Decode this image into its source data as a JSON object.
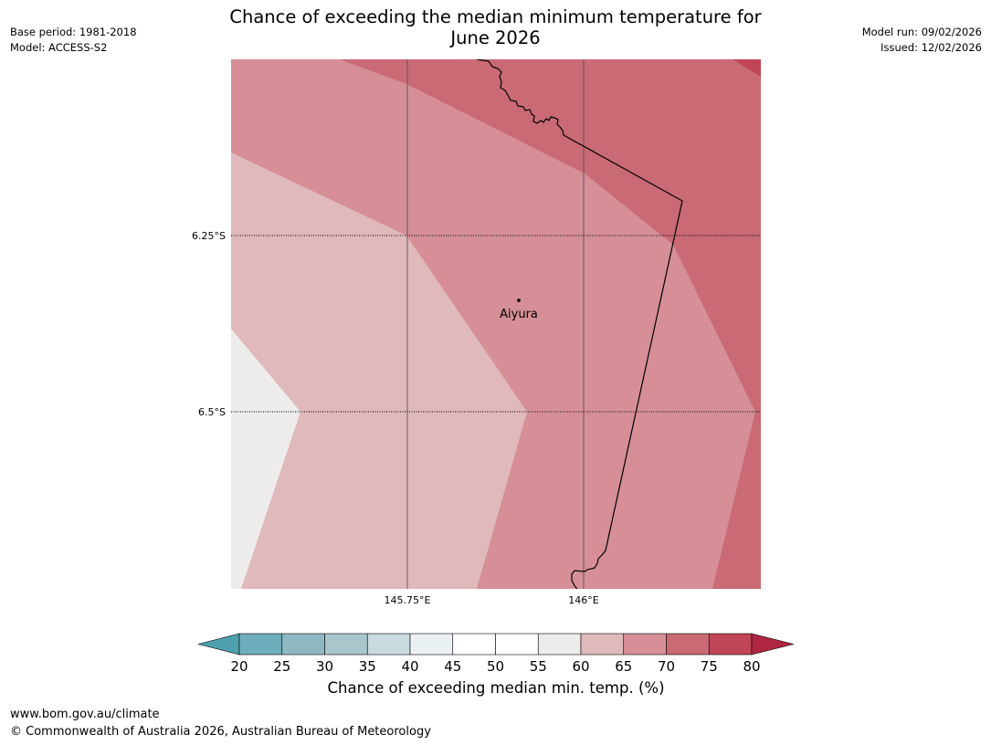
{
  "title": {
    "line1": "Chance of exceeding the median minimum temperature for",
    "line2": "June 2026"
  },
  "meta": {
    "base_period": "Base period: 1981-2018",
    "model": "Model: ACCESS-S2",
    "model_run": "Model run: 09/02/2026",
    "issued": "Issued: 12/02/2026"
  },
  "map": {
    "latitude_labels": [
      "6.25°S",
      "6.5°S"
    ],
    "longitude_labels": [
      "145.75°E",
      "146°E"
    ],
    "place_label": "Aiyura"
  },
  "colorbar": {
    "label": "Chance of exceeding median min. temp. (%)",
    "ticks": [
      "20",
      "25",
      "30",
      "35",
      "40",
      "45",
      "50",
      "55",
      "60",
      "65",
      "70",
      "75",
      "80"
    ],
    "colors": [
      "#4ea0ae",
      "#6eadbb",
      "#8db8c4",
      "#a9c6cc",
      "#c9dbdf",
      "#eaf1f3",
      "#ffffff",
      "#ffffff",
      "#eeecea",
      "#e0b9bd",
      "#d68f96",
      "#c96a74",
      "#c04657",
      "#b02542"
    ]
  },
  "contour_colors": {
    "c55_60": "#eeecea",
    "c60_65": "#e0b9bd",
    "c65_70": "#d68f96",
    "c70_75": "#c96a74",
    "c75_80": "#c04657"
  },
  "footer": {
    "url": "www.bom.gov.au/climate",
    "copyright": "© Commonwealth of Australia 2026, Australian Bureau of Meteorology"
  }
}
